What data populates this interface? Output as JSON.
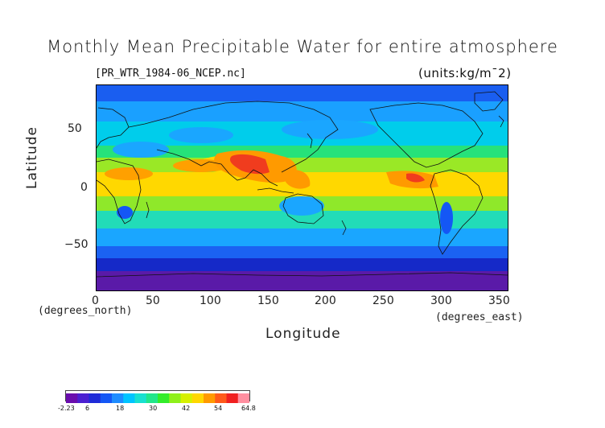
{
  "chart_data": {
    "type": "heatmap",
    "title": "Monthly Mean Precipitable Water for entire atmosphere",
    "file_label": "[PR_WTR_1984-06_NCEP.nc]",
    "units_label": "(units:kg/m¯2)",
    "xlabel": "Longitude",
    "ylabel": "Latitude",
    "x_unit_note": "(degrees_east)",
    "y_unit_note": "(degrees_north)",
    "xlim": [
      0,
      360
    ],
    "ylim": [
      -90,
      90
    ],
    "x_ticks": [
      0,
      50,
      100,
      150,
      200,
      250,
      300,
      350
    ],
    "y_ticks": [
      50,
      0,
      -50
    ],
    "x_tick_labels": [
      "0",
      "50",
      "100",
      "150",
      "200",
      "250",
      "300",
      "350"
    ],
    "y_tick_labels": [
      "50",
      "0",
      "−50"
    ],
    "colorbar": {
      "min": -2.23,
      "max": 64.8,
      "tick_labels": [
        "-2.23",
        "6",
        "18",
        "30",
        "42",
        "54",
        "64.8"
      ],
      "tick_values": [
        -2.23,
        6,
        18,
        30,
        42,
        54,
        64.8
      ],
      "colors": [
        "#6a0dad",
        "#4b1fd1",
        "#1f2bd8",
        "#1457f5",
        "#1e8cff",
        "#00c4ff",
        "#18e0d0",
        "#21e68a",
        "#33ec2a",
        "#8ff01a",
        "#d6f000",
        "#ffd700",
        "#ff9a00",
        "#ff5a1a",
        "#f02020",
        "#ff8fa0"
      ]
    }
  },
  "colors": {
    "ocean_deep_south": "#5b1aa6",
    "navy": "#1526c9",
    "blue": "#1b57f2",
    "sky": "#1aa6ff",
    "cyan": "#00d2ee",
    "green": "#2ee65a",
    "lime": "#8ee82a",
    "yellow": "#ffe000",
    "orange": "#ffa000",
    "red": "#f03c1e"
  }
}
